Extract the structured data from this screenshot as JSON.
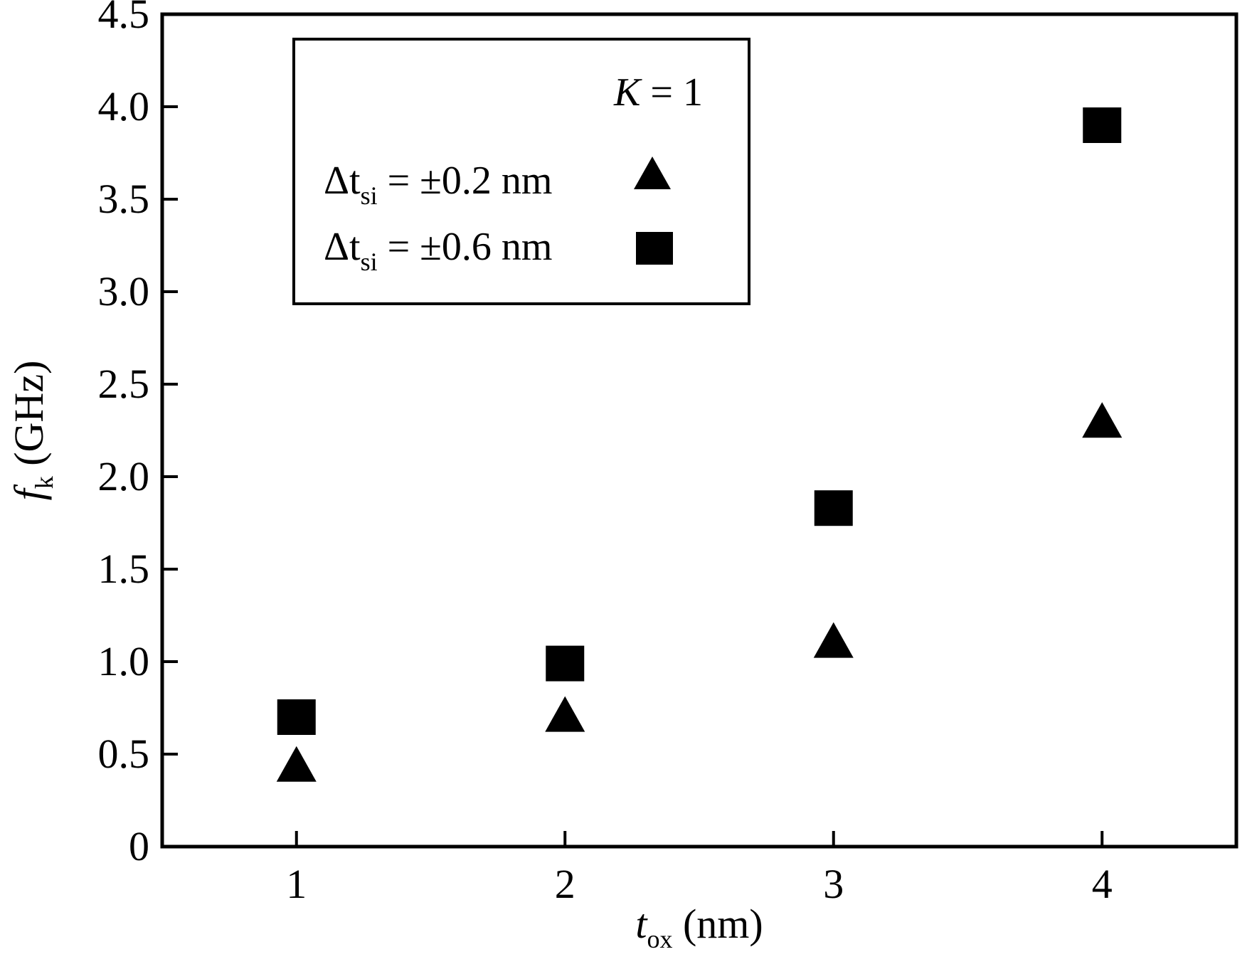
{
  "chart_data": {
    "type": "scatter",
    "title": "",
    "x": [
      1,
      2,
      3,
      4
    ],
    "xlim": [
      0.5,
      4.5
    ],
    "ylim": [
      0,
      4.5
    ],
    "xticks": [
      "1",
      "2",
      "3",
      "4"
    ],
    "yticks": [
      "0",
      "0.5",
      "1.0",
      "1.5",
      "2.0",
      "2.5",
      "3.0",
      "3.5",
      "4.0",
      "4.5"
    ],
    "xlabel": {
      "main": "t",
      "sub": "ox",
      "unit": " (nm)"
    },
    "ylabel": {
      "main": "f",
      "sub": "k",
      "unit": " (GHz)"
    },
    "grid": false,
    "legend_position": "top-left",
    "annotation": {
      "var": "K",
      "rest": " = 1"
    },
    "series": [
      {
        "marker": "triangle",
        "label": {
          "prefix": "Δt",
          "sub": "si",
          "rest": " = ±0.2 nm"
        },
        "values": [
          0.42,
          0.69,
          1.09,
          2.28
        ]
      },
      {
        "marker": "square",
        "label": {
          "prefix": "Δt",
          "sub": "si",
          "rest": " = ±0.6 nm"
        },
        "values": [
          0.7,
          0.99,
          1.83,
          3.9
        ]
      }
    ],
    "marker_color": "#000000"
  }
}
